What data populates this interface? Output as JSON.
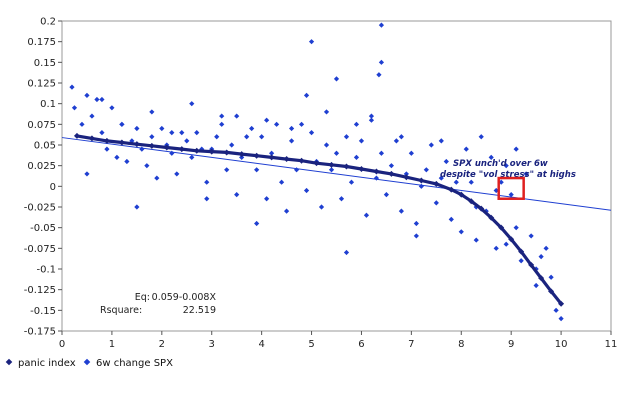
{
  "chart_data": {
    "type": "scatter",
    "title": "",
    "xlabel": "",
    "ylabel": "",
    "xlim": [
      0,
      11
    ],
    "ylim": [
      -0.175,
      0.2
    ],
    "x_ticks": [
      0,
      1,
      2,
      3,
      4,
      5,
      6,
      7,
      8,
      9,
      10,
      11
    ],
    "x_tick_labels": [
      "0",
      "1",
      "2",
      "3",
      "4",
      "5",
      "6",
      "7",
      "8",
      "9",
      "10",
      "11"
    ],
    "y_ticks": [
      0.2,
      0.175,
      0.15,
      0.125,
      0.1,
      0.075,
      0.05,
      0.025,
      0,
      -0.025,
      -0.05,
      -0.075,
      -0.1,
      -0.125,
      -0.15,
      -0.175
    ],
    "y_tick_labels": [
      "0.2",
      "0.175",
      "0.15",
      "0.125",
      "0.1",
      "0.075",
      "0.05",
      "0.025",
      "0",
      "-0.025",
      "-0.05",
      "-0.075",
      "-0.1",
      "-0.125",
      "-0.15",
      "-0.175"
    ],
    "grid": false,
    "legend_position": "bottom-left",
    "colors": {
      "panic": "#1a237e",
      "spx": "#1f3fd1",
      "highlight": "#e02020"
    },
    "series": [
      {
        "name": "panic index",
        "marker": "diamond",
        "color": "#1a237e",
        "x": [
          0.3,
          0.6,
          0.9,
          1.2,
          1.5,
          1.8,
          2.1,
          2.4,
          2.7,
          3.0,
          3.3,
          3.6,
          3.9,
          4.2,
          4.5,
          4.8,
          5.1,
          5.4,
          5.7,
          6.0,
          6.3,
          6.6,
          6.9,
          7.2,
          7.5,
          7.8,
          8.0,
          8.2,
          8.4,
          8.6,
          8.8,
          9.0,
          9.2,
          9.4,
          9.6,
          9.8,
          10.0
        ],
        "y": [
          0.061,
          0.058,
          0.055,
          0.053,
          0.051,
          0.049,
          0.047,
          0.045,
          0.043,
          0.042,
          0.041,
          0.039,
          0.037,
          0.035,
          0.033,
          0.031,
          0.028,
          0.026,
          0.024,
          0.021,
          0.018,
          0.015,
          0.011,
          0.007,
          0.003,
          -0.004,
          -0.01,
          -0.018,
          -0.027,
          -0.038,
          -0.05,
          -0.064,
          -0.079,
          -0.095,
          -0.111,
          -0.127,
          -0.142
        ]
      },
      {
        "name": "6w change SPX",
        "marker": "diamond",
        "color": "#1f3fd1",
        "x": [
          0.2,
          0.25,
          0.4,
          0.5,
          0.6,
          0.7,
          0.8,
          0.9,
          1.0,
          1.1,
          1.2,
          1.3,
          1.4,
          1.5,
          1.6,
          1.7,
          1.8,
          1.9,
          2.0,
          2.1,
          2.2,
          2.3,
          2.4,
          2.5,
          2.6,
          2.7,
          2.8,
          2.9,
          3.0,
          3.1,
          3.2,
          3.3,
          3.4,
          3.5,
          3.6,
          3.7,
          3.8,
          3.9,
          4.0,
          4.1,
          4.2,
          4.3,
          4.4,
          4.5,
          4.6,
          4.7,
          4.8,
          4.9,
          5.0,
          5.1,
          5.2,
          5.3,
          5.4,
          5.5,
          5.6,
          5.7,
          5.8,
          5.9,
          6.0,
          6.1,
          6.2,
          6.3,
          6.35,
          6.4,
          6.5,
          6.6,
          6.7,
          6.8,
          6.9,
          7.0,
          7.1,
          7.2,
          7.3,
          7.4,
          7.5,
          7.6,
          7.7,
          7.8,
          7.9,
          8.0,
          8.1,
          8.2,
          8.3,
          8.4,
          8.5,
          8.6,
          8.7,
          8.8,
          8.9,
          9.0,
          9.1,
          9.2,
          9.3,
          9.4,
          9.5,
          9.6,
          9.7,
          9.8,
          9.9,
          10.0,
          5.0,
          5.5,
          6.4,
          6.4,
          4.9,
          3.2,
          2.6,
          1.8,
          0.8,
          1.2,
          2.2,
          3.5,
          4.1,
          4.6,
          5.3,
          5.9,
          6.8,
          7.6,
          8.3,
          8.7,
          9.1,
          9.5,
          2.9,
          1.5,
          0.5,
          7.1,
          5.7,
          3.9,
          6.2,
          8.9
        ],
        "y": [
          0.12,
          0.095,
          0.075,
          0.11,
          0.085,
          0.105,
          0.065,
          0.045,
          0.095,
          0.035,
          0.075,
          0.03,
          0.055,
          0.07,
          0.045,
          0.025,
          0.06,
          0.01,
          0.07,
          0.05,
          0.04,
          0.015,
          0.065,
          0.055,
          0.035,
          0.065,
          0.045,
          0.005,
          0.045,
          0.06,
          0.075,
          0.02,
          0.05,
          -0.01,
          0.035,
          0.06,
          0.07,
          0.02,
          0.06,
          -0.015,
          0.04,
          0.075,
          0.005,
          -0.03,
          0.055,
          0.02,
          0.075,
          -0.005,
          0.065,
          0.03,
          -0.025,
          0.05,
          0.02,
          0.04,
          -0.015,
          0.06,
          0.005,
          0.035,
          0.055,
          -0.035,
          0.085,
          0.01,
          0.135,
          0.04,
          -0.01,
          0.025,
          0.055,
          -0.03,
          0.015,
          0.04,
          -0.045,
          0.0,
          0.02,
          0.05,
          -0.02,
          0.01,
          0.03,
          -0.04,
          0.005,
          -0.055,
          0.045,
          0.005,
          -0.025,
          0.06,
          -0.03,
          0.035,
          -0.005,
          0.005,
          -0.07,
          -0.01,
          0.045,
          -0.09,
          0.015,
          -0.06,
          -0.12,
          -0.085,
          -0.075,
          -0.11,
          -0.15,
          -0.16,
          0.175,
          0.13,
          0.195,
          0.15,
          0.11,
          0.085,
          0.1,
          0.09,
          0.105,
          0.075,
          0.065,
          0.085,
          0.08,
          0.07,
          0.09,
          0.075,
          0.06,
          0.055,
          -0.065,
          -0.075,
          -0.05,
          -0.1,
          -0.015,
          -0.025,
          0.015,
          -0.06,
          -0.08,
          -0.045,
          0.08,
          0.025
        ]
      }
    ],
    "trendline": {
      "x": [
        0,
        11
      ],
      "y": [
        0.059,
        -0.029
      ]
    },
    "stats_box": {
      "eq_label": "Eq:",
      "eq_value": "0.059-0.008X",
      "rsq_label": "Rsquare:",
      "rsq_value": "22.519"
    },
    "annotation": {
      "line1": "SPX unch'd over 6w",
      "line2": "despite \"vol stress\" at highs"
    },
    "highlight_box": {
      "x": [
        8.75,
        9.25
      ],
      "y": [
        -0.015,
        0.01
      ]
    }
  }
}
